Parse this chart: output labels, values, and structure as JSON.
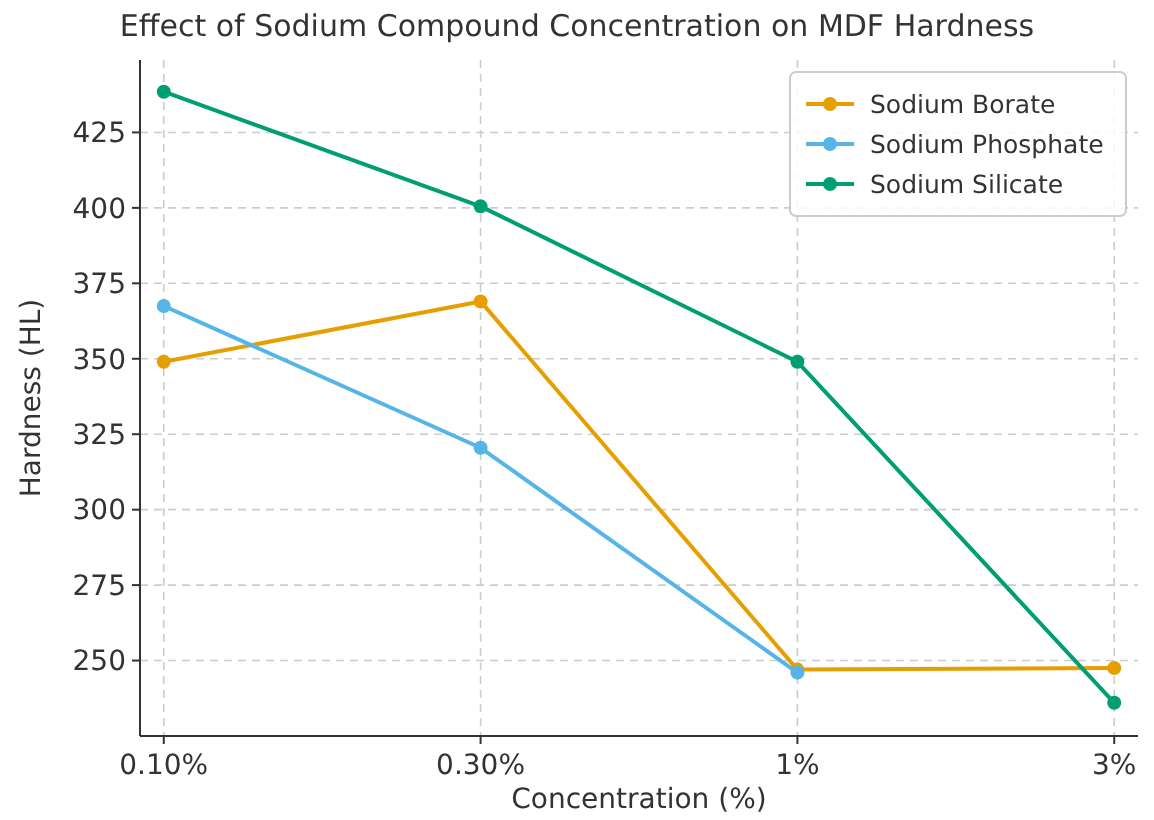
{
  "chart_data": {
    "type": "line",
    "title": "Effect of Sodium Compound Concentration on MDF Hardness",
    "xlabel": "Concentration (%)",
    "ylabel": "Hardness (HL)",
    "categories": [
      "0.10%",
      "0.30%",
      "1%",
      "3%"
    ],
    "series": [
      {
        "name": "Sodium Borate",
        "color": "#e69f00",
        "values": [
          349,
          369,
          247,
          247.5
        ]
      },
      {
        "name": "Sodium Phosphate",
        "color": "#56b4e9",
        "values": [
          367.5,
          320.5,
          246,
          null
        ]
      },
      {
        "name": "Sodium Silicate",
        "color": "#009e73",
        "values": [
          438.5,
          400.5,
          349,
          236
        ]
      }
    ],
    "ylim": [
      225,
      449
    ],
    "yticks": [
      250,
      275,
      300,
      325,
      350,
      375,
      400,
      425
    ],
    "grid": true,
    "legend": "top right",
    "marker": "circle",
    "line_style": "solid"
  }
}
